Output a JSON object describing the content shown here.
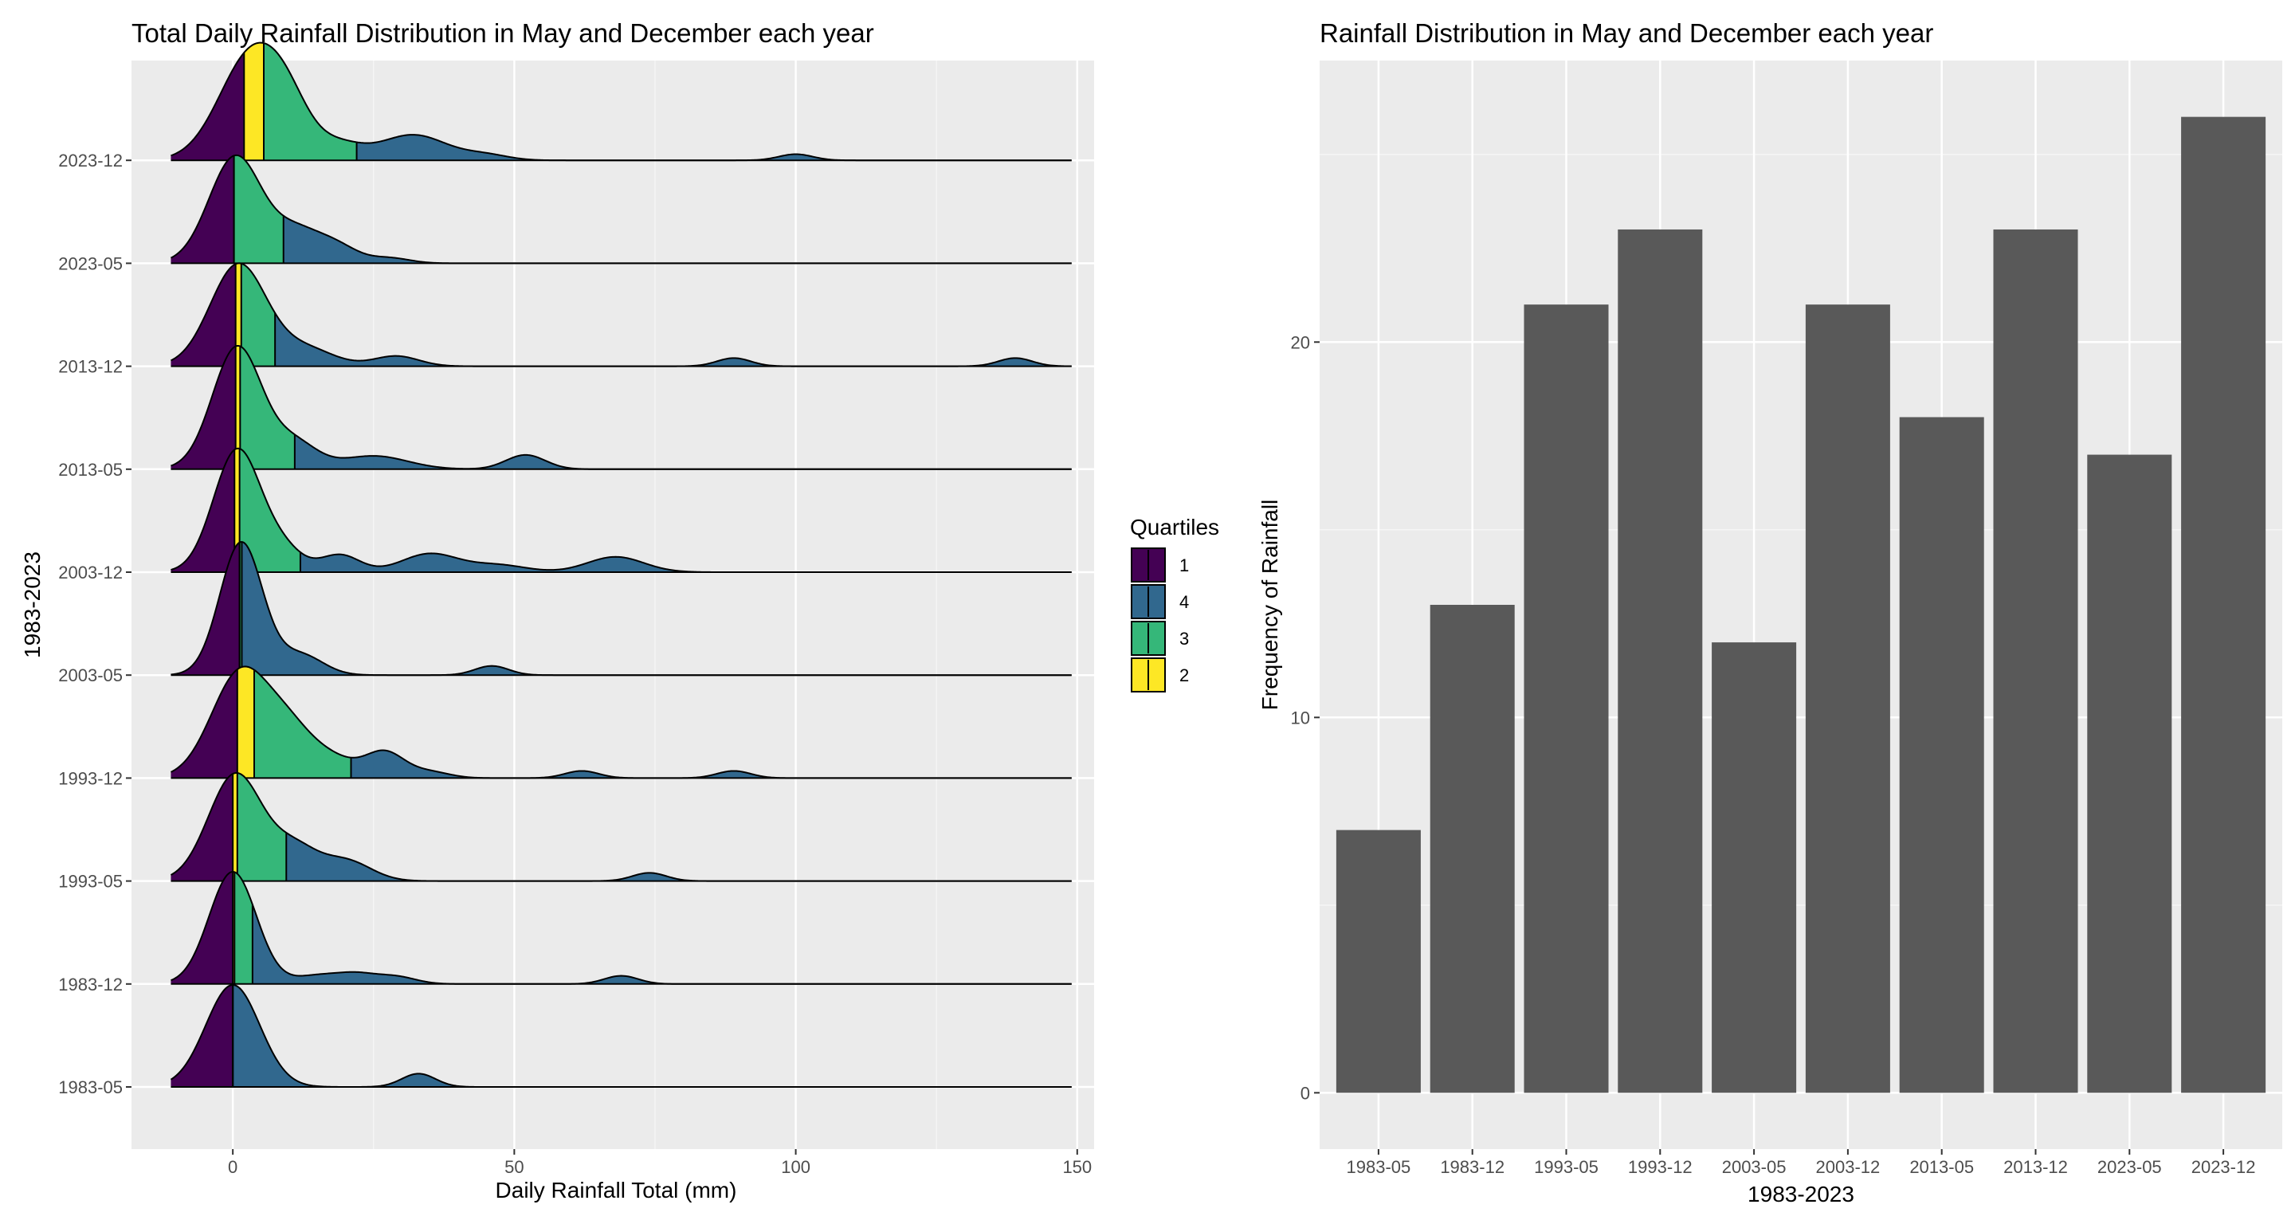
{
  "chart_data": [
    {
      "type": "ridgeline",
      "title": "Total Daily Rainfall Distribution in May and December each year",
      "xlabel": "Daily Rainfall Total (mm)",
      "ylabel": "1983-2023",
      "xlim": [
        -18,
        153
      ],
      "x_ticks": [
        0,
        50,
        100,
        150
      ],
      "grid": true,
      "legend": {
        "title": "Quartiles",
        "placement": "right",
        "entries": [
          {
            "label": "1",
            "color": "#440154"
          },
          {
            "label": "4",
            "color": "#31688E"
          },
          {
            "label": "3",
            "color": "#35B779"
          },
          {
            "label": "2",
            "color": "#FDE725"
          }
        ]
      },
      "categories": [
        "1983-05",
        "1983-12",
        "1993-05",
        "1993-12",
        "2003-05",
        "2003-12",
        "2013-05",
        "2013-12",
        "2023-05",
        "2023-12"
      ],
      "series": [
        {
          "category": "1983-05",
          "q1": 0,
          "q2": 0,
          "q3": 0,
          "peak": [
            0,
            1.0,
            4.8
          ],
          "bumps": [
            [
              33,
              0.13,
              3.0
            ]
          ]
        },
        {
          "category": "1983-12",
          "q1": 0,
          "q2": 0.3,
          "q3": 3.5,
          "peak": [
            0,
            1.1,
            4.2
          ],
          "bumps": [
            [
              15,
              0.08,
              4
            ],
            [
              22,
              0.09,
              3.5
            ],
            [
              29,
              0.07,
              3.5
            ],
            [
              69,
              0.08,
              3.0
            ]
          ]
        },
        {
          "category": "1993-05",
          "q1": 0,
          "q2": 0.8,
          "q3": 9.5,
          "peak": [
            0.5,
            1.05,
            4.8
          ],
          "bumps": [
            [
              11,
              0.3,
              4
            ],
            [
              20,
              0.2,
              4.5
            ],
            [
              74,
              0.08,
              3.0
            ]
          ]
        },
        {
          "category": "1993-12",
          "q1": 0.8,
          "q2": 3.8,
          "q3": 21,
          "peak": [
            1.5,
            1.05,
            5.2
          ],
          "bumps": [
            [
              10,
              0.35,
              4
            ],
            [
              17,
              0.2,
              4.5
            ],
            [
              27,
              0.25,
              3.5
            ],
            [
              35,
              0.06,
              3.5
            ],
            [
              62,
              0.07,
              3.0
            ],
            [
              89,
              0.07,
              3.0
            ]
          ]
        },
        {
          "category": "2003-05",
          "q1": 1.2,
          "q2": 1.2,
          "q3": 1.6,
          "peak": [
            1.5,
            1.3,
            3.8
          ],
          "bumps": [
            [
              12,
              0.2,
              4
            ],
            [
              46,
              0.09,
              3.0
            ]
          ]
        },
        {
          "category": "2003-12",
          "q1": 0.3,
          "q2": 1.2,
          "q3": 12,
          "peak": [
            0.8,
            1.2,
            4.2
          ],
          "bumps": [
            [
              9,
              0.2,
              3.5
            ],
            [
              19,
              0.17,
              3.5
            ],
            [
              35,
              0.18,
              5
            ],
            [
              47,
              0.07,
              5
            ],
            [
              68,
              0.15,
              5.0
            ]
          ]
        },
        {
          "category": "2013-05",
          "q1": 0.5,
          "q2": 1.3,
          "q3": 11,
          "peak": [
            0.8,
            1.2,
            4.4
          ],
          "bumps": [
            [
              11,
              0.25,
              4
            ],
            [
              25,
              0.13,
              6
            ],
            [
              52,
              0.14,
              3.5
            ]
          ]
        },
        {
          "category": "2013-12",
          "q1": 0.5,
          "q2": 1.5,
          "q3": 7.5,
          "peak": [
            1.0,
            1.0,
            5.0
          ],
          "bumps": [
            [
              13,
              0.17,
              5
            ],
            [
              29,
              0.1,
              4
            ],
            [
              89,
              0.08,
              3.0
            ],
            [
              139,
              0.08,
              3.0
            ]
          ]
        },
        {
          "category": "2023-05",
          "q1": 0.2,
          "q2": 0.2,
          "q3": 9,
          "peak": [
            0.5,
            1.05,
            4.7
          ],
          "bumps": [
            [
              11,
              0.28,
              4
            ],
            [
              18,
              0.18,
              4
            ],
            [
              28,
              0.05,
              3.5
            ]
          ]
        },
        {
          "category": "2023-12",
          "q1": 2,
          "q2": 5.5,
          "q3": 22,
          "peak": [
            3.5,
            1.05,
            5.8
          ],
          "bumps": [
            [
              10,
              0.3,
              4
            ],
            [
              19,
              0.14,
              4
            ],
            [
              32,
              0.25,
              6
            ],
            [
              45,
              0.05,
              4
            ],
            [
              100,
              0.06,
              3.0
            ]
          ]
        }
      ]
    },
    {
      "type": "bar",
      "title": "Rainfall Distribution in May and December each year",
      "xlabel": "1983-2023",
      "ylabel": "Frequency of Rainfall",
      "ylim": [
        -1.5,
        27.5
      ],
      "y_ticks": [
        0,
        10,
        20
      ],
      "grid": true,
      "color": "#595959",
      "categories": [
        "1983-05",
        "1983-12",
        "1993-05",
        "1993-12",
        "2003-05",
        "2003-12",
        "2013-05",
        "2013-12",
        "2023-05",
        "2023-12"
      ],
      "values": [
        7,
        13,
        21,
        23,
        12,
        21,
        18,
        23,
        17,
        26
      ]
    }
  ]
}
